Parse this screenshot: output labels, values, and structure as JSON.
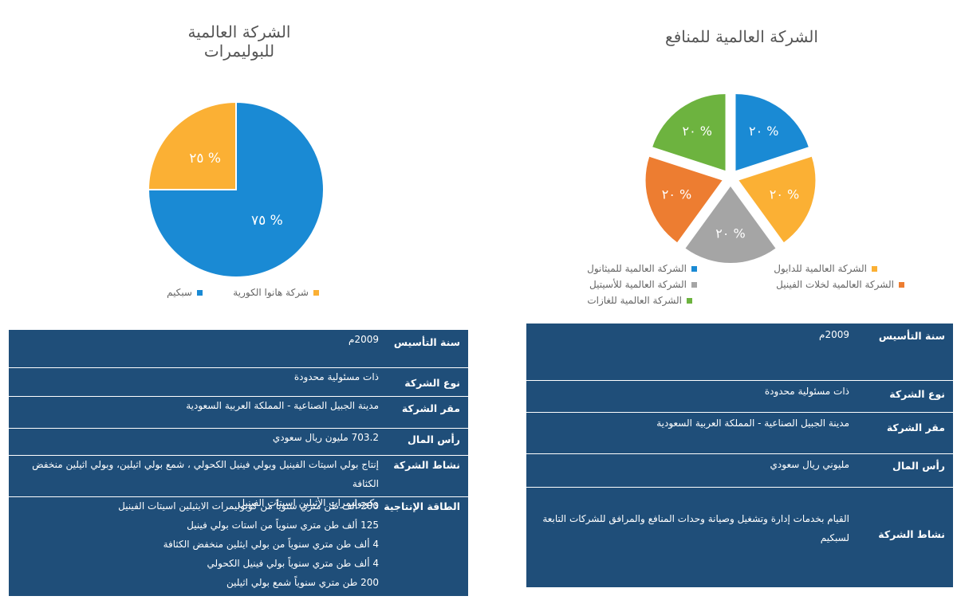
{
  "chart_data": [
    {
      "type": "pie",
      "title": "الشركة العالمية للبوليمرات",
      "categories": [
        "سبكيم",
        "شركة هانوا الكورية"
      ],
      "values": [
        75,
        25
      ],
      "data_labels": [
        "٧٥ %",
        "٢٥ %"
      ],
      "colors": [
        "#1a8ad4",
        "#fbb034"
      ],
      "legend_position": "bottom"
    },
    {
      "type": "pie",
      "title": "الشركة العالمية للمنافع",
      "categories": [
        "الشركة العالمية للميثانول",
        "الشركة العالمية للدايول",
        "الشركة العالمية للأسيتيل",
        "الشركة العالمية لخلات الفينيل",
        "الشركة العالمية للغازات"
      ],
      "values": [
        20,
        20,
        20,
        20,
        20
      ],
      "data_labels": [
        "٢٠ %",
        "٢٠ %",
        "٢٠ %",
        "٢٠ %",
        "٢٠ %"
      ],
      "colors": [
        "#1a8ad4",
        "#fbb034",
        "#a5a5a5",
        "#ed7d31",
        "#6db33f"
      ],
      "legend_position": "bottom"
    }
  ],
  "left_table": {
    "rows": [
      {
        "label": "سنة التأسيس",
        "values": [
          "2009م"
        ]
      },
      {
        "label": "نوع الشركة",
        "values": [
          "ذات مسئولية محدودة"
        ]
      },
      {
        "label": "مقر الشركة",
        "values": [
          "مدينة الجبيل الصناعية - المملكة العربية السعودية"
        ]
      },
      {
        "label": "رأس المال",
        "values": [
          "703.2 مليون ريال سعودي"
        ]
      },
      {
        "label": "نشاط الشركة",
        "values": [
          "إنتاج بولي اسيتات الفينيل وبولي فينيل الكحولي ، شمع بولي اثيلين، وبولي اثيلين منخفض الكثافة",
          "وكوبوليمرات الأثيلين اسيتات الفينيل"
        ]
      },
      {
        "label": "الطاقة الإنتاجية",
        "values": [
          "200  ألف طن متري سنوياً من كوبوليمرات الايثيلين اسيتات الفينيل",
          "125  ألف طن متري  سنوياً من  استات بولي فينيل",
          "4 ألف طن متري سنوياً من بولي ايثلين منخفض الكثافة",
          "4 ألف طن متري سنوياً  بولي فينيل الكحولي",
          "200 طن متري سنوياً  شمع بولي اثيلين"
        ]
      }
    ]
  },
  "right_table": {
    "rows": [
      {
        "label": "سنة التأسيس",
        "values": [
          "2009م"
        ]
      },
      {
        "label": "نوع الشركة",
        "values": [
          "ذات مسئولية محدودة"
        ]
      },
      {
        "label": "مقر الشركة",
        "values": [
          "مدينة الجبيل الصناعية - المملكة العربية السعودية"
        ]
      },
      {
        "label": "رأس المال",
        "values": [
          "مليوني ريال سعودي"
        ]
      },
      {
        "label": "نشاط الشركة",
        "values": [
          "القيام بخدمات إدارة وتشغيل وصيانة وحدات المنافع والمرافق للشركات التابعة",
          "لسبكيم"
        ]
      }
    ]
  }
}
